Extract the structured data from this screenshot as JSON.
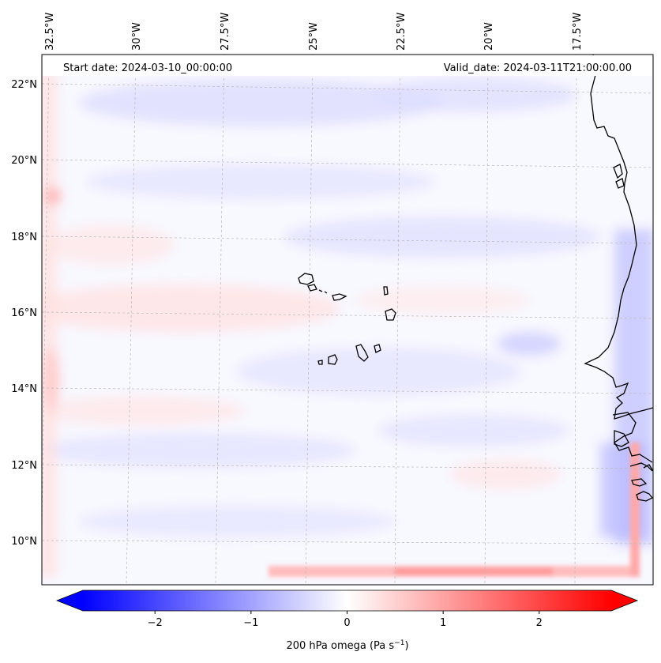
{
  "header": {
    "start_date": "Start date: 2024-03-10_00:00:00",
    "valid_date": "Valid_date: 2024-03-11T21:00:00.00"
  },
  "axes": {
    "lon_labels": [
      "32.5°W",
      "30°W",
      "27.5°W",
      "25°W",
      "22.5°W",
      "20°W",
      "17.5°W"
    ],
    "lat_labels": [
      "22°N",
      "20°N",
      "18°N",
      "16°N",
      "14°N",
      "12°N",
      "10°N"
    ]
  },
  "colorbar": {
    "label_main": "200 hPa omega (Pa s",
    "label_exp": "−1",
    "label_end": ")",
    "ticks": [
      "−2",
      "−1",
      "0",
      "1",
      "2"
    ],
    "tick_values": [
      -2,
      -1,
      0,
      1,
      2
    ],
    "vmin": -2.75,
    "vmax": 2.75,
    "colors": {
      "negative": "#0000ff",
      "zero": "#ffffff",
      "positive": "#ff0000"
    }
  },
  "colors": {
    "land_outline": "#000000",
    "gridline": "#b0b0b0",
    "background_field": "#f7f7ff"
  }
}
